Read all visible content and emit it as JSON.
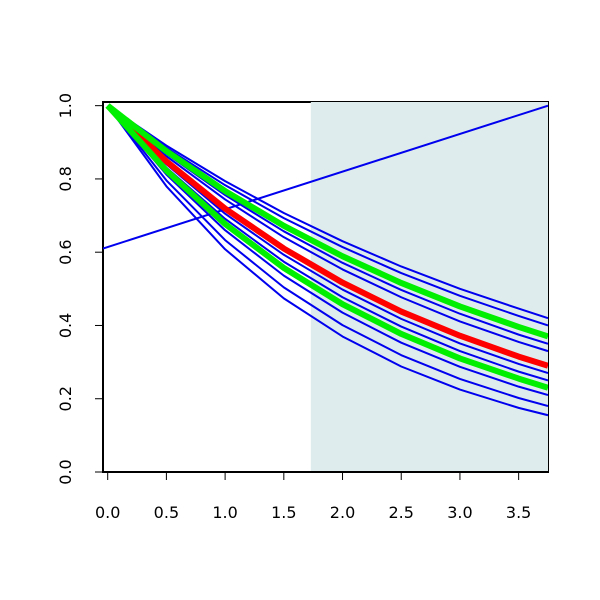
{
  "chart_data": {
    "type": "line",
    "x": [
      0,
      0.5,
      1,
      1.5,
      2,
      2.5,
      3,
      3.5,
      3.75
    ],
    "xlim": [
      -0.04,
      3.75
    ],
    "ylim": [
      0,
      1.01
    ],
    "xticks": [
      {
        "value": 0,
        "label": "0.0"
      },
      {
        "value": 0.5,
        "label": "0.5"
      },
      {
        "value": 1,
        "label": "1.0"
      },
      {
        "value": 1.5,
        "label": "1.5"
      },
      {
        "value": 2,
        "label": "2.0"
      },
      {
        "value": 2.5,
        "label": "2.5"
      },
      {
        "value": 3,
        "label": "3.0"
      },
      {
        "value": 3.5,
        "label": "3.5"
      }
    ],
    "yticks": [
      {
        "value": 0,
        "label": "0.0"
      },
      {
        "value": 0.2,
        "label": "0.2"
      },
      {
        "value": 0.4,
        "label": "0.4"
      },
      {
        "value": 0.6,
        "label": "0.6"
      },
      {
        "value": 0.8,
        "label": "0.8"
      },
      {
        "value": 1,
        "label": "1.0"
      }
    ],
    "shade_x": [
      1.73,
      3.75
    ],
    "shade_color": "#dfeced",
    "series": [
      {
        "color": "#0000ee",
        "width": 2,
        "values": [
          1,
          0.891,
          0.794,
          0.707,
          0.63,
          0.561,
          0.5,
          0.446,
          0.42
        ]
      },
      {
        "color": "#0000ee",
        "width": 2,
        "values": [
          1,
          0.885,
          0.783,
          0.693,
          0.614,
          0.543,
          0.481,
          0.426,
          0.4
        ]
      },
      {
        "color": "#0000ee",
        "width": 2,
        "values": [
          1,
          0.869,
          0.756,
          0.657,
          0.571,
          0.497,
          0.432,
          0.375,
          0.35
        ]
      },
      {
        "color": "#0000ee",
        "width": 2,
        "values": [
          1,
          0.862,
          0.744,
          0.641,
          0.553,
          0.477,
          0.411,
          0.355,
          0.33
        ]
      },
      {
        "color": "#0000ee",
        "width": 2,
        "values": [
          1,
          0.84,
          0.705,
          0.593,
          0.498,
          0.418,
          0.351,
          0.295,
          0.27
        ]
      },
      {
        "color": "#0000ee",
        "width": 2,
        "values": [
          1,
          0.831,
          0.691,
          0.574,
          0.477,
          0.397,
          0.33,
          0.274,
          0.25
        ]
      },
      {
        "color": "#0000ee",
        "width": 2,
        "values": [
          1,
          0.812,
          0.66,
          0.536,
          0.435,
          0.353,
          0.287,
          0.233,
          0.21
        ]
      },
      {
        "color": "#0000ee",
        "width": 2,
        "values": [
          1,
          0.796,
          0.633,
          0.504,
          0.401,
          0.319,
          0.254,
          0.202,
          0.18
        ]
      },
      {
        "color": "#0000ee",
        "width": 2,
        "values": [
          1,
          0.78,
          0.608,
          0.474,
          0.37,
          0.288,
          0.225,
          0.175,
          0.155
        ]
      },
      {
        "color": "#0000ee",
        "width": 2,
        "x": [
          -0.04,
          3.75
        ],
        "values": [
          0.61,
          1.0
        ]
      },
      {
        "color": "#ff0000",
        "width": 6,
        "values": [
          1,
          0.848,
          0.719,
          0.61,
          0.517,
          0.438,
          0.372,
          0.315,
          0.29
        ]
      },
      {
        "color": "#00ee00",
        "width": 6,
        "values": [
          1,
          0.876,
          0.767,
          0.672,
          0.589,
          0.516,
          0.452,
          0.396,
          0.37
        ]
      },
      {
        "color": "#00ee00",
        "width": 6,
        "values": [
          1,
          0.823,
          0.677,
          0.557,
          0.458,
          0.377,
          0.31,
          0.255,
          0.23
        ]
      }
    ]
  }
}
